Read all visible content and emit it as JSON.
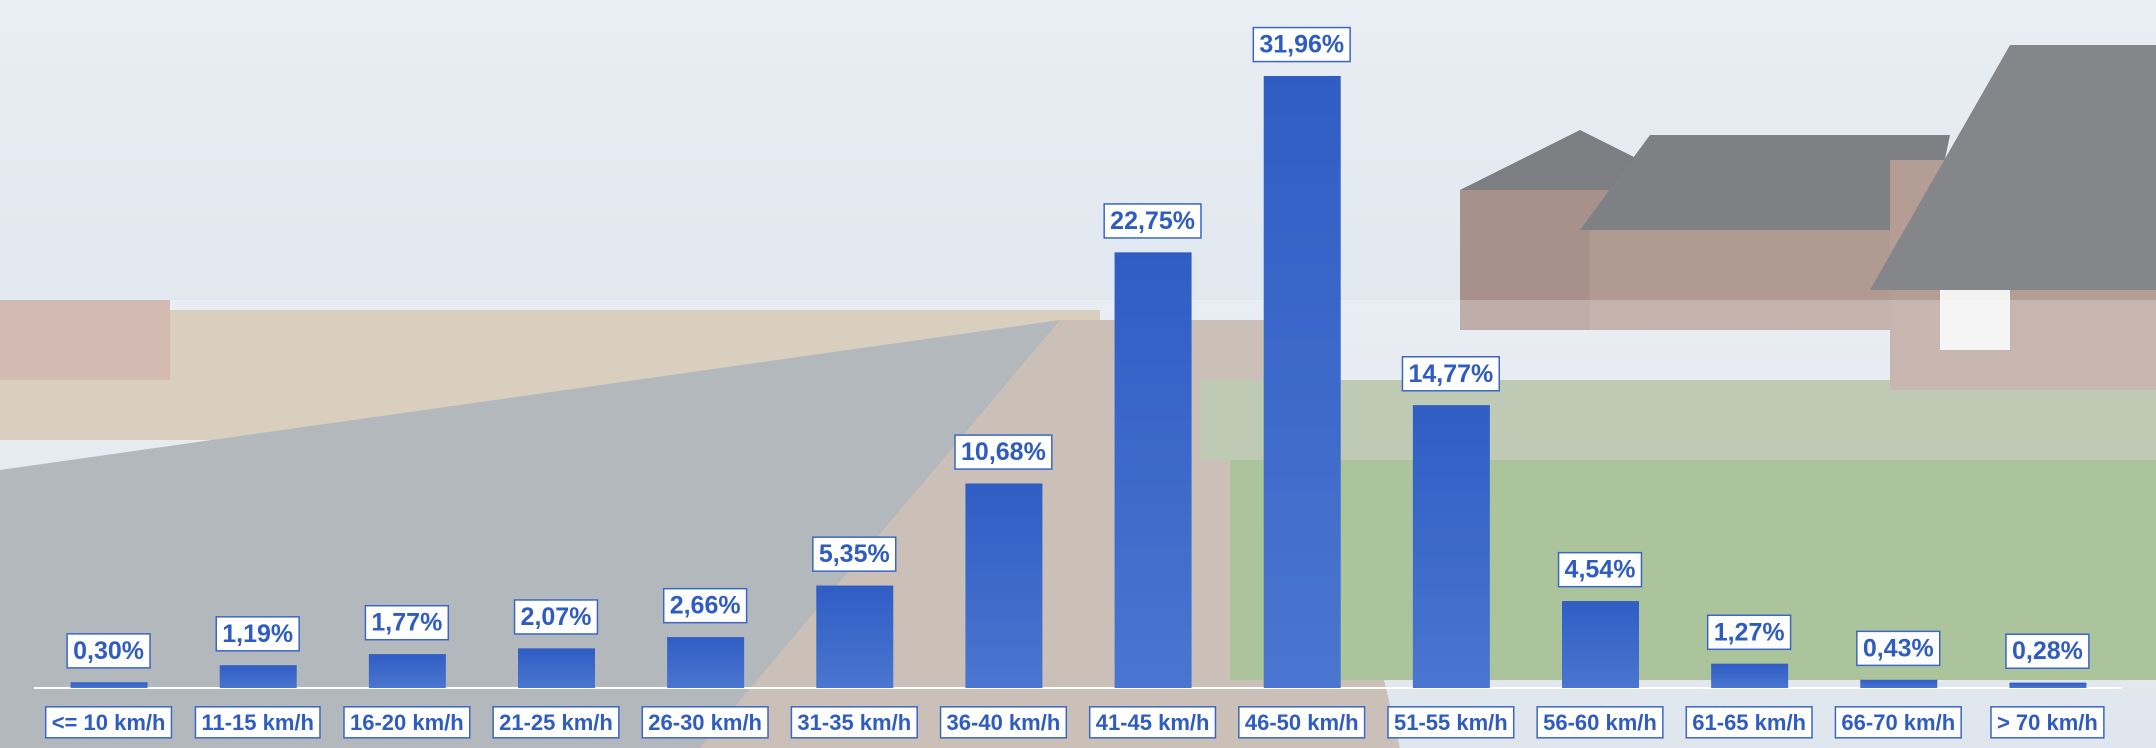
{
  "chart_data": {
    "type": "bar",
    "categories": [
      "<= 10 km/h",
      "11-15 km/h",
      "16-20 km/h",
      "21-25 km/h",
      "26-30 km/h",
      "31-35 km/h",
      "36-40 km/h",
      "41-45 km/h",
      "46-50 km/h",
      "51-55 km/h",
      "56-60 km/h",
      "61-65 km/h",
      "66-70 km/h",
      "> 70 km/h"
    ],
    "values": [
      0.3,
      1.19,
      1.77,
      2.07,
      2.66,
      5.35,
      10.68,
      22.75,
      31.96,
      14.77,
      4.54,
      1.27,
      0.43,
      0.28
    ],
    "value_labels": [
      "0,30%",
      "1,19%",
      "1,77%",
      "2,07%",
      "2,66%",
      "5,35%",
      "10,68%",
      "22,75%",
      "31,96%",
      "14,77%",
      "4,54%",
      "1,27%",
      "0,43%",
      "0,28%"
    ],
    "color": "#3a66c8"
  }
}
